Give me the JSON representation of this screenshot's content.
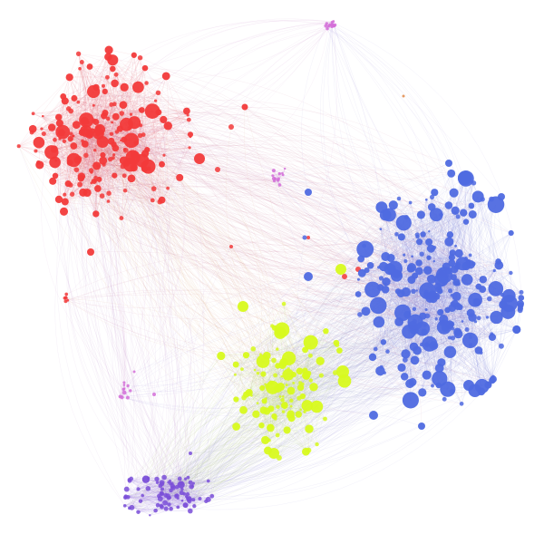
{
  "graph": {
    "background": "#ffffff",
    "communities": [
      {
        "id": "red",
        "color": "#f23a3a",
        "edge_color": "#e0616f"
      },
      {
        "id": "blue",
        "color": "#4f6ae0",
        "edge_color": "#7e86da"
      },
      {
        "id": "yellow",
        "color": "#d8fa1e",
        "edge_color": "#c9e08a"
      },
      {
        "id": "violet",
        "color": "#7a4fd8",
        "edge_color": "#9a7ae0"
      },
      {
        "id": "pink",
        "color": "#d46fd8",
        "edge_color": "#c88fd8"
      },
      {
        "id": "orange",
        "color": "#e08a4a",
        "edge_color": "#e0a070"
      }
    ]
  }
}
